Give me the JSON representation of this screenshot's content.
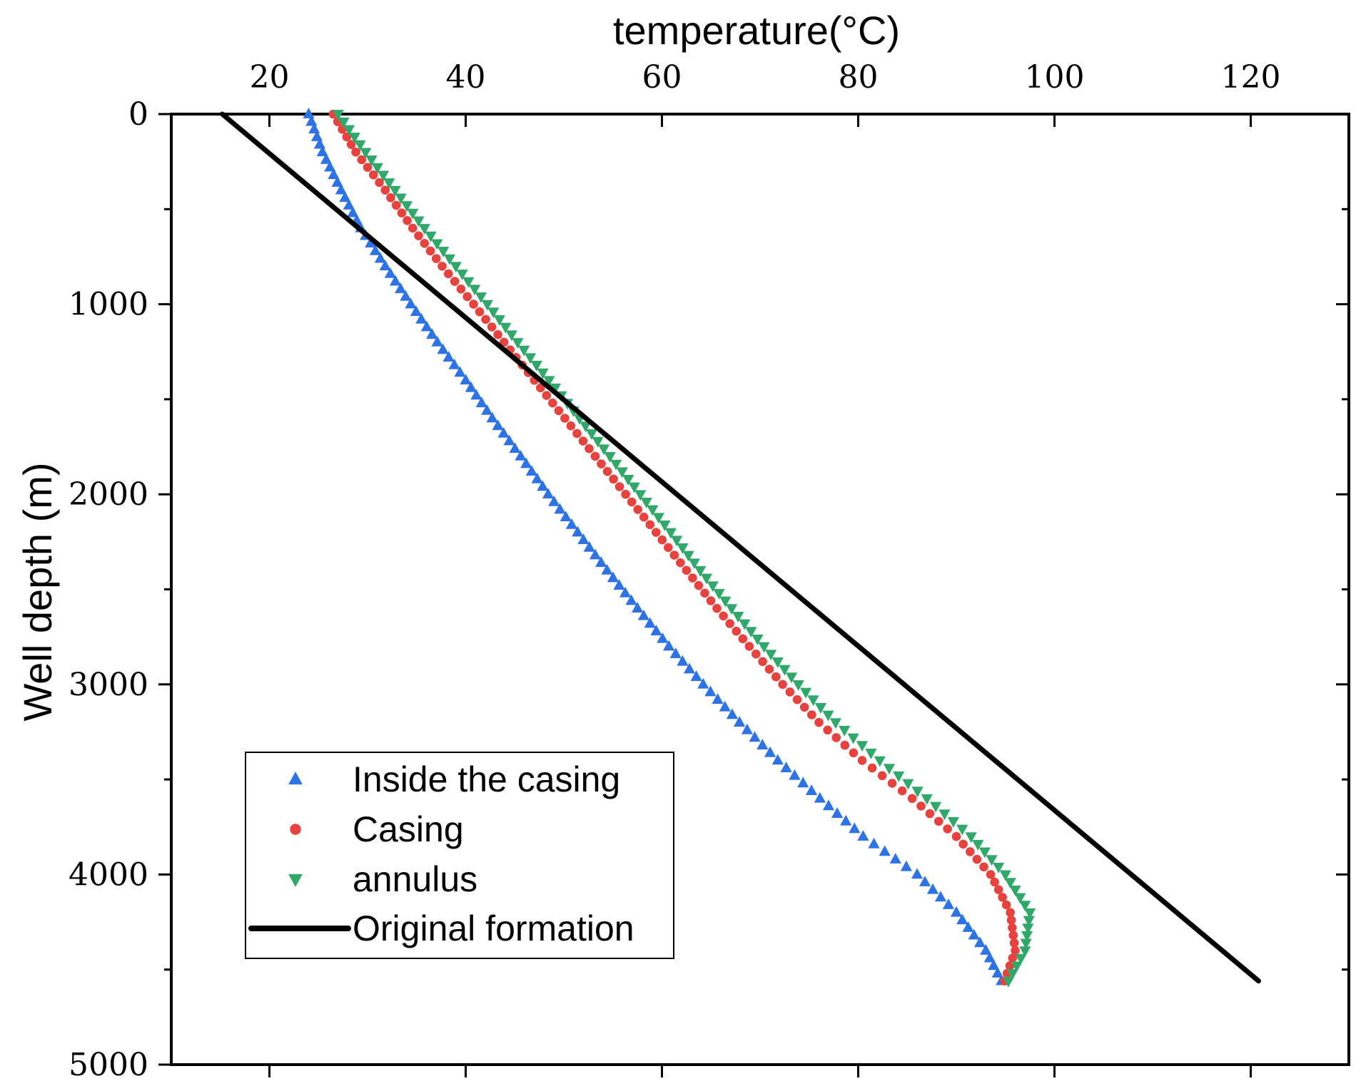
{
  "chart_data": {
    "type": "scatter",
    "title": "",
    "xlabel": "temperature(°C)",
    "ylabel": "Well depth (m)",
    "xaxis_position": "top",
    "yaxis_inverted": true,
    "xlim": [
      10,
      130
    ],
    "ylim": [
      0,
      5000
    ],
    "xticks": [
      20,
      40,
      60,
      80,
      100,
      120
    ],
    "yticks": [
      0,
      1000,
      2000,
      3000,
      4000,
      5000
    ],
    "xtick_labels": [
      "20",
      "40",
      "60",
      "80",
      "100",
      "120"
    ],
    "ytick_labels": [
      "0",
      "1000",
      "2000",
      "3000",
      "4000",
      "5000"
    ],
    "grid": false,
    "legend_position": "bottom-left",
    "series": [
      {
        "name": "Inside the casing",
        "marker": "triangle-up",
        "color": "#2d73e6",
        "points": [
          [
            24.0,
            0
          ],
          [
            25.4,
            200
          ],
          [
            27.3,
            400
          ],
          [
            29.3,
            600
          ],
          [
            31.8,
            800
          ],
          [
            34.4,
            1000
          ],
          [
            37.1,
            1200
          ],
          [
            40.0,
            1400
          ],
          [
            42.7,
            1600
          ],
          [
            45.6,
            1800
          ],
          [
            48.4,
            2000
          ],
          [
            51.4,
            2200
          ],
          [
            54.4,
            2400
          ],
          [
            57.5,
            2600
          ],
          [
            60.7,
            2800
          ],
          [
            64.2,
            3000
          ],
          [
            67.9,
            3200
          ],
          [
            71.8,
            3400
          ],
          [
            76.1,
            3600
          ],
          [
            80.5,
            3800
          ],
          [
            86.0,
            4000
          ],
          [
            90.0,
            4200
          ],
          [
            93.0,
            4400
          ],
          [
            94.6,
            4560
          ]
        ]
      },
      {
        "name": "Casing",
        "marker": "circle",
        "color": "#e8423f",
        "points": [
          [
            26.5,
            0
          ],
          [
            28.8,
            200
          ],
          [
            31.8,
            400
          ],
          [
            34.6,
            600
          ],
          [
            37.6,
            800
          ],
          [
            40.8,
            1000
          ],
          [
            43.9,
            1200
          ],
          [
            47.0,
            1400
          ],
          [
            50.1,
            1600
          ],
          [
            53.2,
            1800
          ],
          [
            56.3,
            2000
          ],
          [
            59.4,
            2200
          ],
          [
            62.5,
            2400
          ],
          [
            65.6,
            2600
          ],
          [
            68.9,
            2800
          ],
          [
            72.3,
            3000
          ],
          [
            76.0,
            3200
          ],
          [
            80.4,
            3400
          ],
          [
            85.5,
            3600
          ],
          [
            90.0,
            3800
          ],
          [
            93.5,
            4000
          ],
          [
            95.5,
            4200
          ],
          [
            96.0,
            4400
          ],
          [
            94.9,
            4560
          ]
        ]
      },
      {
        "name": "annulus",
        "marker": "triangle-down",
        "color": "#2fa86a",
        "points": [
          [
            27.0,
            0
          ],
          [
            29.8,
            200
          ],
          [
            32.8,
            400
          ],
          [
            35.8,
            600
          ],
          [
            39.0,
            800
          ],
          [
            42.2,
            1000
          ],
          [
            45.3,
            1200
          ],
          [
            48.5,
            1400
          ],
          [
            51.6,
            1600
          ],
          [
            54.7,
            1800
          ],
          [
            57.8,
            2000
          ],
          [
            60.9,
            2200
          ],
          [
            63.9,
            2400
          ],
          [
            67.1,
            2600
          ],
          [
            70.4,
            2800
          ],
          [
            73.9,
            3000
          ],
          [
            77.7,
            3200
          ],
          [
            82.2,
            3400
          ],
          [
            87.0,
            3600
          ],
          [
            91.5,
            3800
          ],
          [
            95.0,
            4000
          ],
          [
            97.5,
            4200
          ],
          [
            97.0,
            4400
          ],
          [
            95.3,
            4560
          ]
        ]
      },
      {
        "name": "Original formation",
        "marker": "line",
        "color": "#000000",
        "points": [
          [
            15.2,
            0
          ],
          [
            120.8,
            4560
          ]
        ]
      }
    ]
  }
}
